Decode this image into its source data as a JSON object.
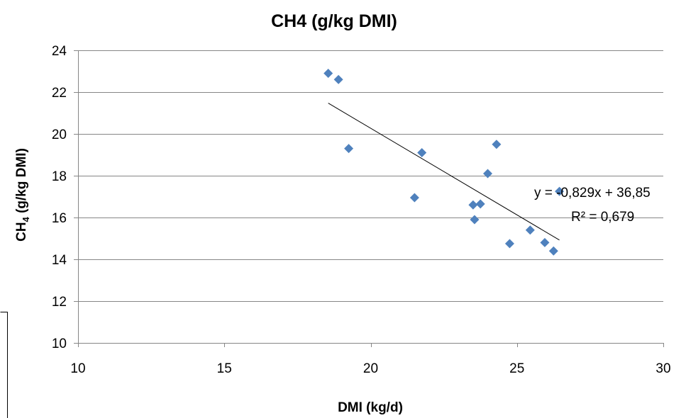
{
  "chart_data": {
    "type": "scatter",
    "title": "CH4 (g/kg DMI)",
    "xlabel": "DMI (kg/d)",
    "ylabel_main": "CH",
    "ylabel_sub": "4",
    "ylabel_rest": " (g/kg DMI)",
    "xlim": [
      10,
      30
    ],
    "ylim": [
      10,
      24
    ],
    "xticks": [
      10,
      15,
      20,
      25,
      30
    ],
    "yticks": [
      10,
      12,
      14,
      16,
      18,
      20,
      22,
      24
    ],
    "grid": "horizontal",
    "marker_color": "#4F81BD",
    "marker_shape": "diamond",
    "points": [
      {
        "x": 18.55,
        "y": 22.9
      },
      {
        "x": 18.9,
        "y": 22.6
      },
      {
        "x": 19.25,
        "y": 19.3
      },
      {
        "x": 21.5,
        "y": 16.95
      },
      {
        "x": 21.75,
        "y": 19.1
      },
      {
        "x": 23.5,
        "y": 16.6
      },
      {
        "x": 23.55,
        "y": 15.9
      },
      {
        "x": 23.75,
        "y": 16.65
      },
      {
        "x": 24.0,
        "y": 18.1
      },
      {
        "x": 24.3,
        "y": 19.5
      },
      {
        "x": 24.75,
        "y": 14.75
      },
      {
        "x": 25.45,
        "y": 15.4
      },
      {
        "x": 25.95,
        "y": 14.8
      },
      {
        "x": 26.25,
        "y": 14.4
      },
      {
        "x": 26.45,
        "y": 17.25
      }
    ],
    "trendline": {
      "slope": -0.829,
      "intercept": 36.85,
      "x_start": 18.55,
      "x_end": 26.45,
      "equation_label": "y = -0,829x + 36,85",
      "r2_label": "R² = 0,679"
    }
  }
}
